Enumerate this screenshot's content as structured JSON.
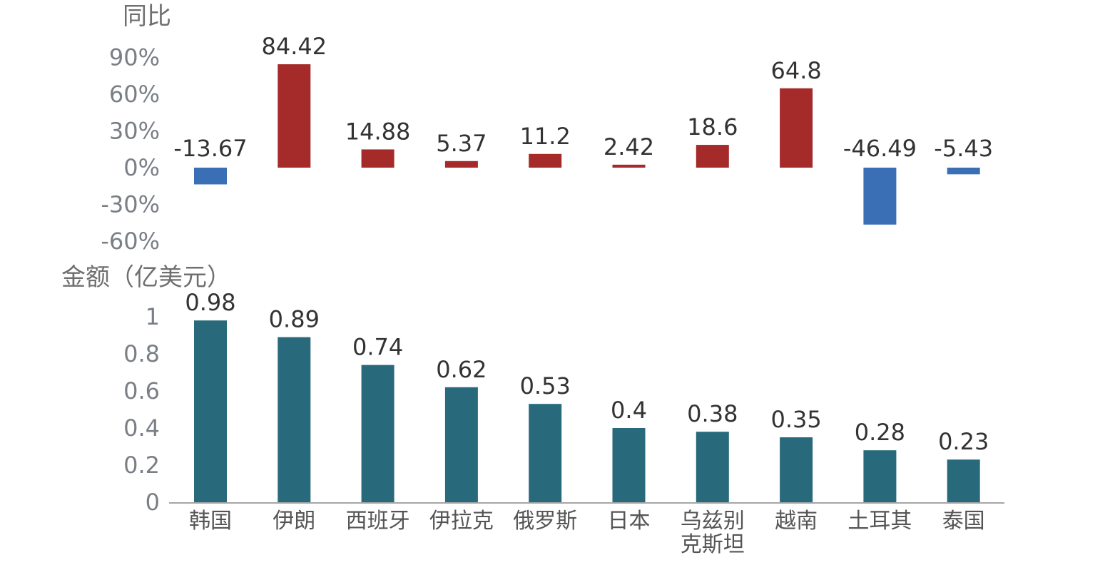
{
  "colors": {
    "positive": "#a52a2a",
    "negative": "#3a6fb5",
    "amount": "#286a7c",
    "axis": "#888888"
  },
  "categories": [
    [
      "韩国"
    ],
    [
      "伊朗"
    ],
    [
      "西班牙"
    ],
    [
      "伊拉克"
    ],
    [
      "俄罗斯"
    ],
    [
      "日本"
    ],
    [
      "乌兹别",
      "克斯坦"
    ],
    [
      "越南"
    ],
    [
      "土耳其"
    ],
    [
      "泰国"
    ]
  ],
  "chart_data": [
    {
      "type": "bar",
      "ylabel": "同比",
      "ylim": [
        -60,
        90
      ],
      "yticks": [
        "90%",
        "60%",
        "30%",
        "0%",
        "-30%",
        "-60%"
      ],
      "ytick_values": [
        90,
        60,
        30,
        0,
        -30,
        -60
      ],
      "categories": [
        "韩国",
        "伊朗",
        "西班牙",
        "伊拉克",
        "俄罗斯",
        "日本",
        "乌兹别克斯坦",
        "越南",
        "土耳其",
        "泰国"
      ],
      "values": [
        -13.67,
        84.42,
        14.88,
        5.37,
        11.2,
        2.42,
        18.6,
        64.8,
        -46.49,
        -5.43
      ],
      "labels": [
        "-13.67",
        "84.42",
        "14.88",
        "5.37",
        "11.2",
        "2.42",
        "18.6",
        "64.8",
        "-46.49",
        "-5.43"
      ]
    },
    {
      "type": "bar",
      "ylabel": "金额（亿美元）",
      "ylim": [
        0,
        1
      ],
      "yticks": [
        "1",
        "0.8",
        "0.6",
        "0.4",
        "0.2",
        "0"
      ],
      "ytick_values": [
        1,
        0.8,
        0.6,
        0.4,
        0.2,
        0
      ],
      "categories": [
        "韩国",
        "伊朗",
        "西班牙",
        "伊拉克",
        "俄罗斯",
        "日本",
        "乌兹别克斯坦",
        "越南",
        "土耳其",
        "泰国"
      ],
      "values": [
        0.98,
        0.89,
        0.74,
        0.62,
        0.53,
        0.4,
        0.38,
        0.35,
        0.28,
        0.23
      ],
      "labels": [
        "0.98",
        "0.89",
        "0.74",
        "0.62",
        "0.53",
        "0.4",
        "0.38",
        "0.35",
        "0.28",
        "0.23"
      ]
    }
  ]
}
